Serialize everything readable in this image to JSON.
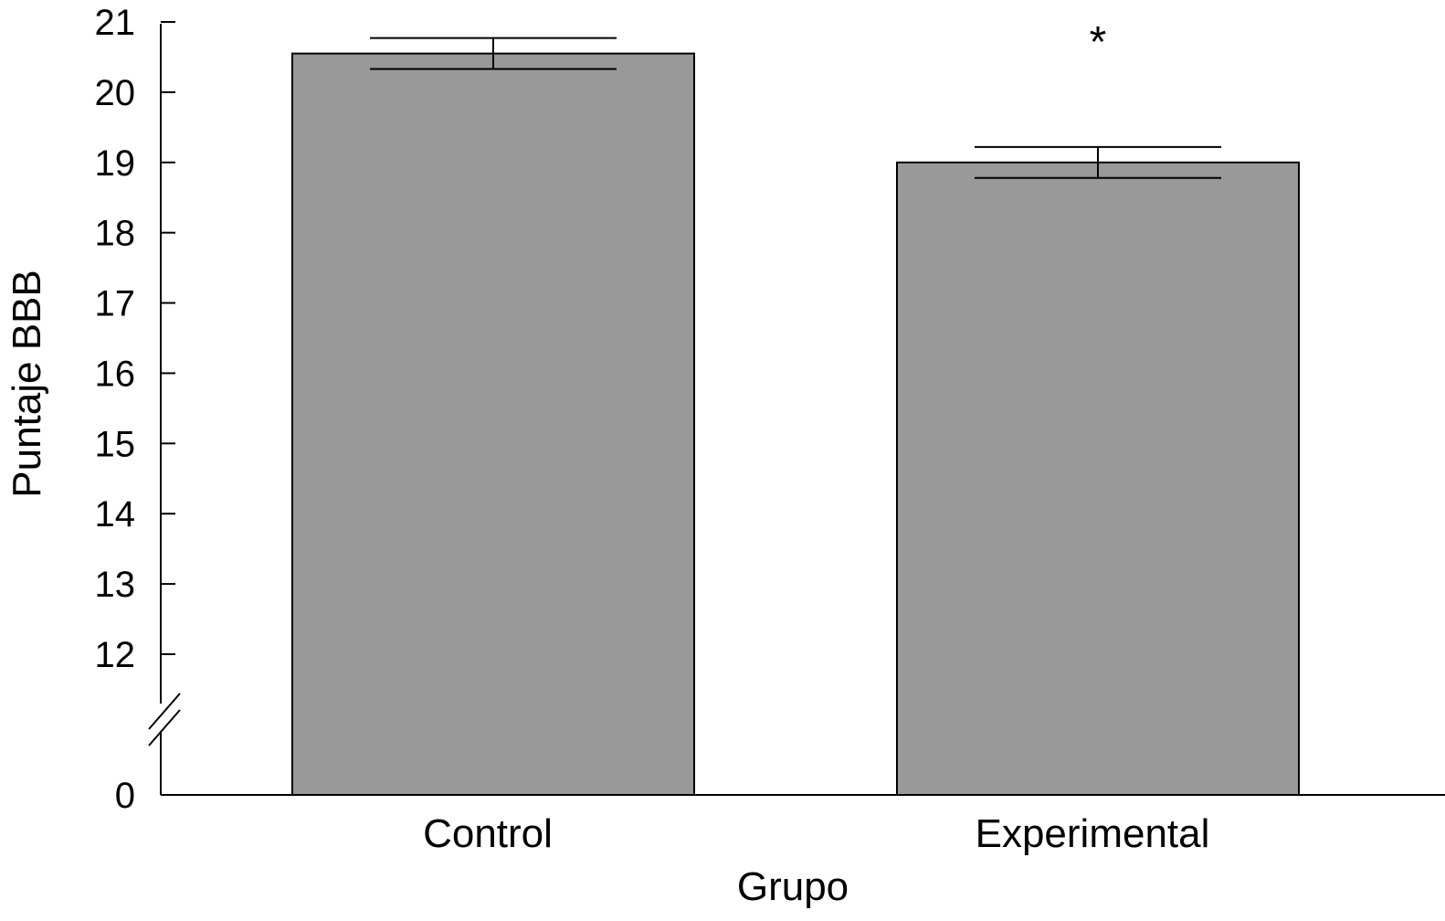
{
  "chart_data": {
    "type": "bar",
    "categories": [
      "Control",
      "Experimental"
    ],
    "values": [
      20.55,
      19.0
    ],
    "error": [
      0.22,
      0.22
    ],
    "xlabel": "Grupo",
    "ylabel": "Puntaje BBB",
    "y_ticks": [
      0,
      12,
      13,
      14,
      15,
      16,
      17,
      18,
      19,
      20,
      21
    ],
    "ylim": [
      0,
      21
    ],
    "axis_break": "between 0 and 12",
    "annotations": [
      {
        "category": "Experimental",
        "text": "*"
      }
    ],
    "bar_color": "#999999",
    "grid": false,
    "legend": "none"
  }
}
